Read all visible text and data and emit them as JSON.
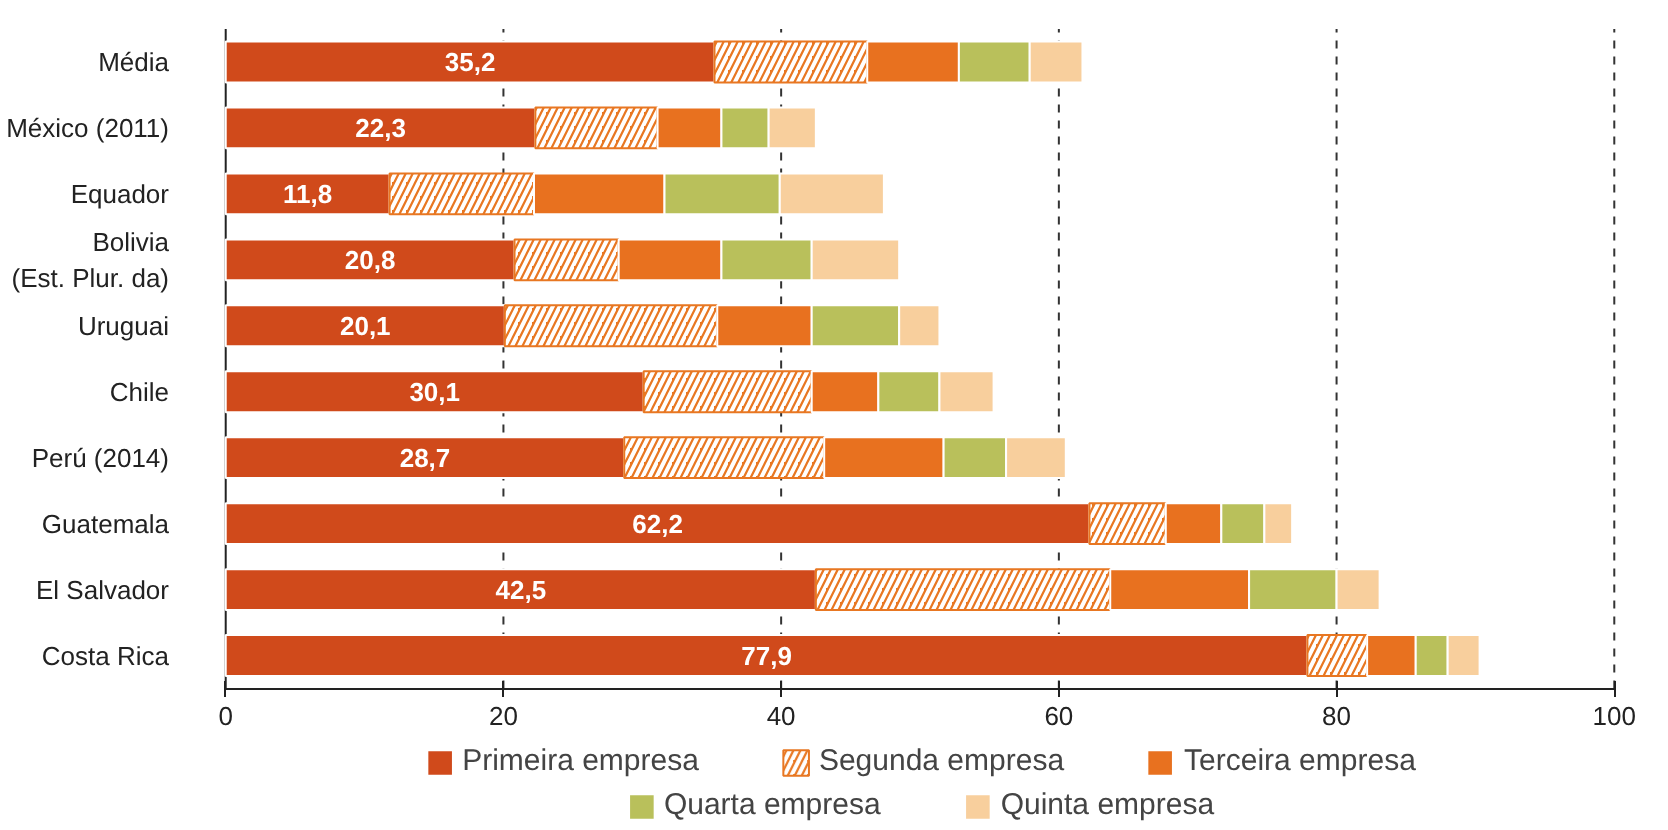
{
  "chart_data": {
    "type": "bar",
    "orientation": "horizontal",
    "stacked": true,
    "categories": [
      "Média",
      "México (2011)",
      "Equador",
      "Bolivia\n(Est. Plur. da)",
      "Uruguai",
      "Chile",
      "Perú (2014)",
      "Guatemala",
      "El Salvador",
      "Costa Rica"
    ],
    "series": [
      {
        "name": "Primeira empresa",
        "color": "#d04a1b",
        "values": [
          35.2,
          22.3,
          11.8,
          20.8,
          20.1,
          30.1,
          28.7,
          62.2,
          42.5,
          77.9
        ],
        "value_labels": [
          "35,2",
          "22,3",
          "11,8",
          "20,8",
          "20,1",
          "30,1",
          "28,7",
          "62,2",
          "42,5",
          "77,9"
        ]
      },
      {
        "name": "Segunda empresa",
        "color": "#e87722",
        "values": [
          11.0,
          8.8,
          10.4,
          7.5,
          15.3,
          12.1,
          14.4,
          5.5,
          21.2,
          4.3
        ]
      },
      {
        "name": "Terceira empresa",
        "color": "#e8711f",
        "values": [
          6.6,
          4.6,
          9.4,
          7.4,
          6.8,
          4.8,
          8.6,
          4.0,
          10.0,
          3.5
        ]
      },
      {
        "name": "Quarta empresa",
        "color": "#b9c05b",
        "values": [
          5.1,
          3.4,
          8.3,
          6.5,
          6.3,
          4.4,
          4.5,
          3.1,
          6.3,
          2.3
        ]
      },
      {
        "name": "Quinta empresa",
        "color": "#f8cf9d",
        "values": [
          3.8,
          3.4,
          7.5,
          6.3,
          2.9,
          3.9,
          4.3,
          2.0,
          3.1,
          2.3
        ]
      }
    ],
    "xlim": [
      0,
      100
    ],
    "xticks": [
      0,
      20,
      40,
      60,
      80,
      100
    ],
    "grid": "x",
    "legend": "bottom"
  }
}
